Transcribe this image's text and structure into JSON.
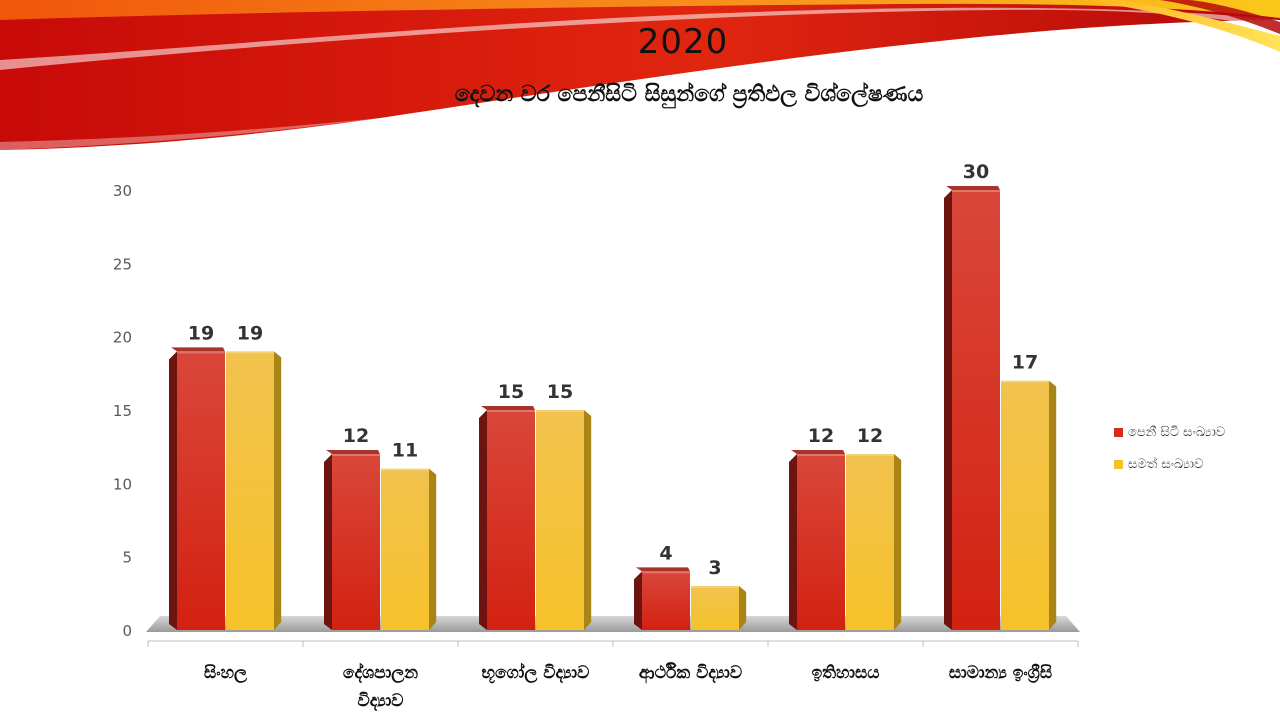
{
  "colors": {
    "series1": "#d42d1e",
    "series2": "#f3c12c",
    "swoosh_red": "#d8100c",
    "swoosh_orange": "#f57a10",
    "swoosh_yellow": "#ffd21a"
  },
  "chart_data": {
    "type": "bar",
    "title": "2020",
    "subtitle": "දෙවන වර පෙනීසිටි සිසුන්ගේ ප්‍රතිඵල විශ්ලේෂණය",
    "categories": [
      "සිංහල",
      "දේශපාලන\nවිද්‍යාව",
      "භූගෝල විද්‍යාව",
      "ආර්ථික විද්‍යාව",
      "ඉතිහාසය",
      "සාමාන්‍ය ඉංග්‍රීසි"
    ],
    "series": [
      {
        "name": "පෙනී සිටි සංඛ්‍යාව",
        "values": [
          19,
          12,
          15,
          4,
          12,
          30
        ]
      },
      {
        "name": "සමත් සංඛ්‍යාව",
        "values": [
          19,
          11,
          15,
          3,
          12,
          17
        ]
      }
    ],
    "ylim": [
      0,
      30
    ],
    "yticks": [
      0,
      5,
      10,
      15,
      20,
      25,
      30
    ],
    "grid": false,
    "legend_position": "right",
    "data_labels": true
  }
}
